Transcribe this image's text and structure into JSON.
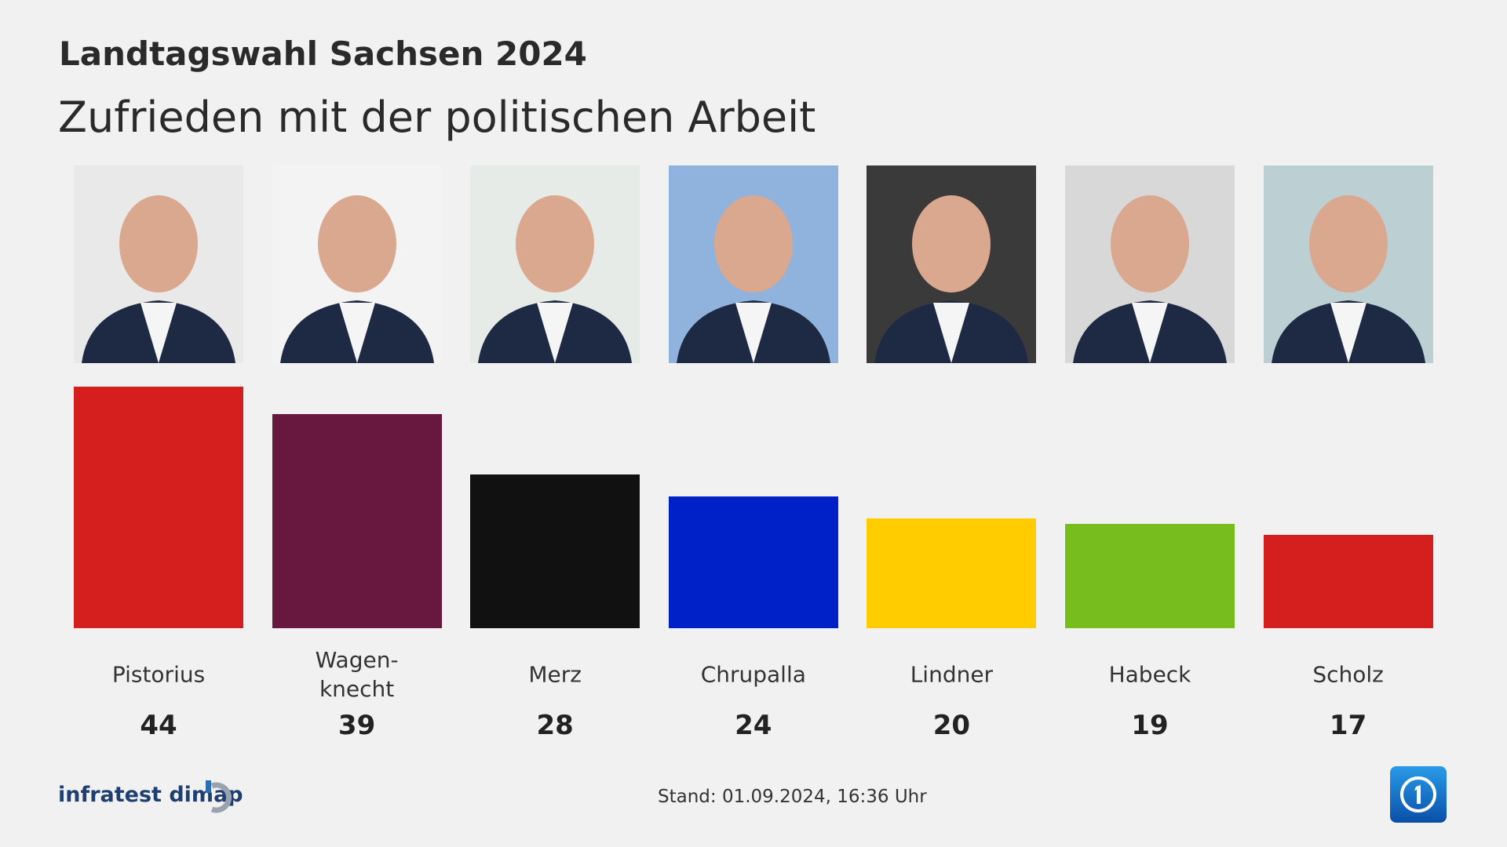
{
  "chart_data": {
    "type": "bar",
    "title": "Landtagswahl Sachsen 2024",
    "subtitle": "Zufrieden mit der politischen Arbeit",
    "categories": [
      "Pistorius",
      "Wagen-\nknecht",
      "Merz",
      "Chrupalla",
      "Lindner",
      "Habeck",
      "Scholz"
    ],
    "values": [
      44,
      39,
      28,
      24,
      20,
      19,
      17
    ],
    "colors": [
      "#d51f1f",
      "#68173f",
      "#111111",
      "#0020c8",
      "#ffcc00",
      "#78bd1e",
      "#d51f1f"
    ],
    "source": "infratest dimap",
    "note": "Stand:  01.09.2024, 16:36 Uhr"
  }
}
